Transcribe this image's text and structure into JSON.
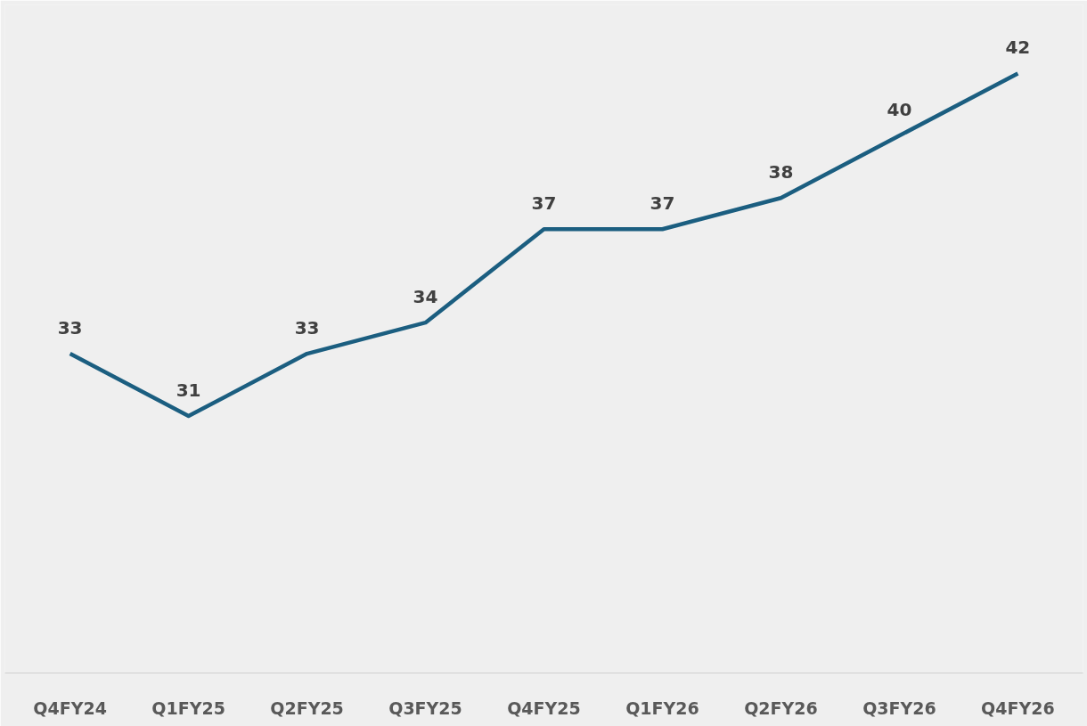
{
  "chart_data": {
    "type": "line",
    "categories": [
      "Q4FY24",
      "Q1FY25",
      "Q2FY25",
      "Q3FY25",
      "Q4FY25",
      "Q1FY26",
      "Q2FY26",
      "Q3FY26",
      "Q4FY26"
    ],
    "series": [
      {
        "color": "#1b5e80",
        "values": [
          33,
          31,
          33,
          34,
          37,
          37,
          38,
          40,
          42
        ]
      }
    ],
    "data_labels": true,
    "grid": false,
    "marker": "none",
    "line_style": "solid",
    "tick_labels": "x"
  }
}
